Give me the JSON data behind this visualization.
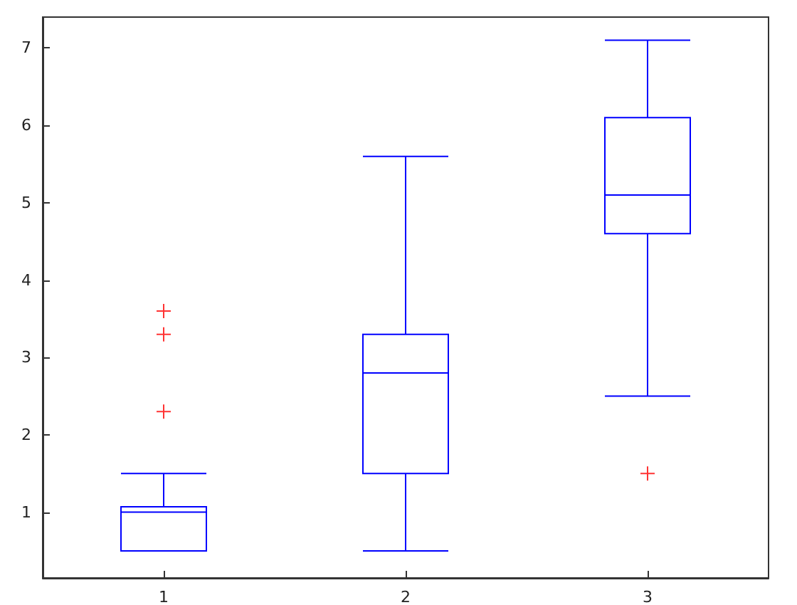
{
  "chart_data": {
    "type": "box",
    "categories": [
      "1",
      "2",
      "3"
    ],
    "color": "#0000ff",
    "marker": "cross",
    "ylim": [
      0.15,
      7.4
    ],
    "yticks": [
      1,
      2,
      3,
      4,
      5,
      6,
      7
    ],
    "grid": false,
    "boxes": [
      {
        "low": 0.5,
        "q1": 0.5,
        "median": 1.0,
        "q3": 1.07,
        "high": 1.5,
        "outliers": [
          3.6,
          3.3,
          2.3
        ]
      },
      {
        "low": 0.5,
        "q1": 1.5,
        "median": 2.8,
        "q3": 3.3,
        "high": 5.6
      },
      {
        "low": 2.5,
        "q1": 4.6,
        "median": 5.1,
        "q3": 6.1,
        "high": 7.1,
        "outliers": [
          1.5
        ]
      }
    ]
  }
}
